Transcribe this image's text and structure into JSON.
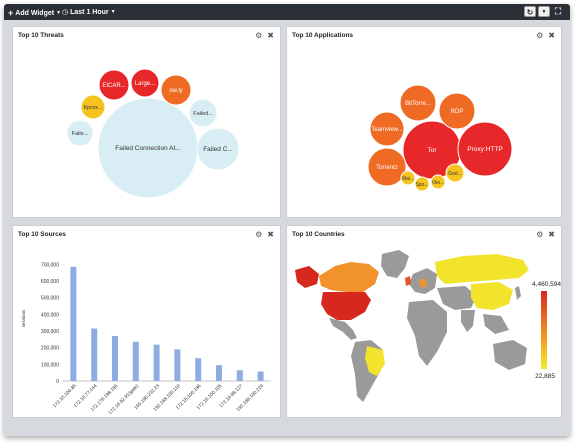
{
  "toolbar": {
    "add_widget_label": "Add Widget",
    "time_range_label": "Last 1 Hour",
    "refresh_icon": "refresh-icon",
    "menu_icon": "caret-down-icon",
    "fullscreen_icon": "fullscreen-icon"
  },
  "panels": {
    "threats": {
      "title": "Top 10 Threats"
    },
    "applications": {
      "title": "Top 10 Applications"
    },
    "sources": {
      "title": "Top 10 Sources"
    },
    "countries": {
      "title": "Top 10 Countries"
    }
  },
  "threat_bubbles": [
    {
      "label": "Failed Connection At...",
      "color": "#d9edf5"
    },
    {
      "label": "Failed C...",
      "color": "#d9edf5"
    },
    {
      "label": "Failed...",
      "color": "#d9edf5"
    },
    {
      "label": "Faile...",
      "color": "#d9edf5"
    },
    {
      "label": "Kprox...",
      "color": "#f7c41f"
    },
    {
      "label": "EICAR...",
      "color": "#e8272a"
    },
    {
      "label": "Large...",
      "color": "#e8272a"
    },
    {
      "label": "ow.ly",
      "color": "#ef6a23"
    }
  ],
  "application_bubbles": [
    {
      "label": "Tor",
      "color": "#e8272a"
    },
    {
      "label": "Proxy:HTTP",
      "color": "#e8272a"
    },
    {
      "label": "Teamview...",
      "color": "#ef6a23"
    },
    {
      "label": "BitTorre...",
      "color": "#ef6a23"
    },
    {
      "label": "RDP",
      "color": "#ef6a23"
    },
    {
      "label": "Torrentz",
      "color": "#ef6a23"
    },
    {
      "label": "God...",
      "color": "#f7c41f"
    },
    {
      "label": "Mai...",
      "color": "#f7c41f"
    },
    {
      "label": "Spo...",
      "color": "#f7c41f"
    },
    {
      "label": "Vko...",
      "color": "#f7c41f"
    }
  ],
  "chart_data": {
    "type": "bar",
    "ylabel": "sessions",
    "ylim": [
      0,
      750000
    ],
    "yticks": [
      0,
      100000,
      200000,
      300000,
      400000,
      500000,
      600000,
      700000
    ],
    "ytick_labels": [
      "0",
      "100,000",
      "200,000",
      "300,000",
      "400,000",
      "500,000",
      "600,000",
      "700,000"
    ],
    "categories": [
      "172.16.100.85",
      "172.16.77.144",
      "172.178.198.185",
      "172.16.92.91(gate)",
      "100.196.232.23",
      "192.168.100.110",
      "172.16.100.186",
      "172.16.100.105",
      "172.16.88.127",
      "192.168.100.220"
    ],
    "values": [
      685000,
      315000,
      270000,
      235000,
      218000,
      190000,
      137000,
      95000,
      65000,
      57000
    ],
    "bar_color": "#8eacdf",
    "grid": false
  },
  "map_legend": {
    "max_label": "4,460,594",
    "min_label": "22,885",
    "color_high": "#d7281f",
    "color_low": "#f6ec2c"
  },
  "colors": {
    "topbar": "#2b3036",
    "map_land": "#9a9a9a"
  }
}
